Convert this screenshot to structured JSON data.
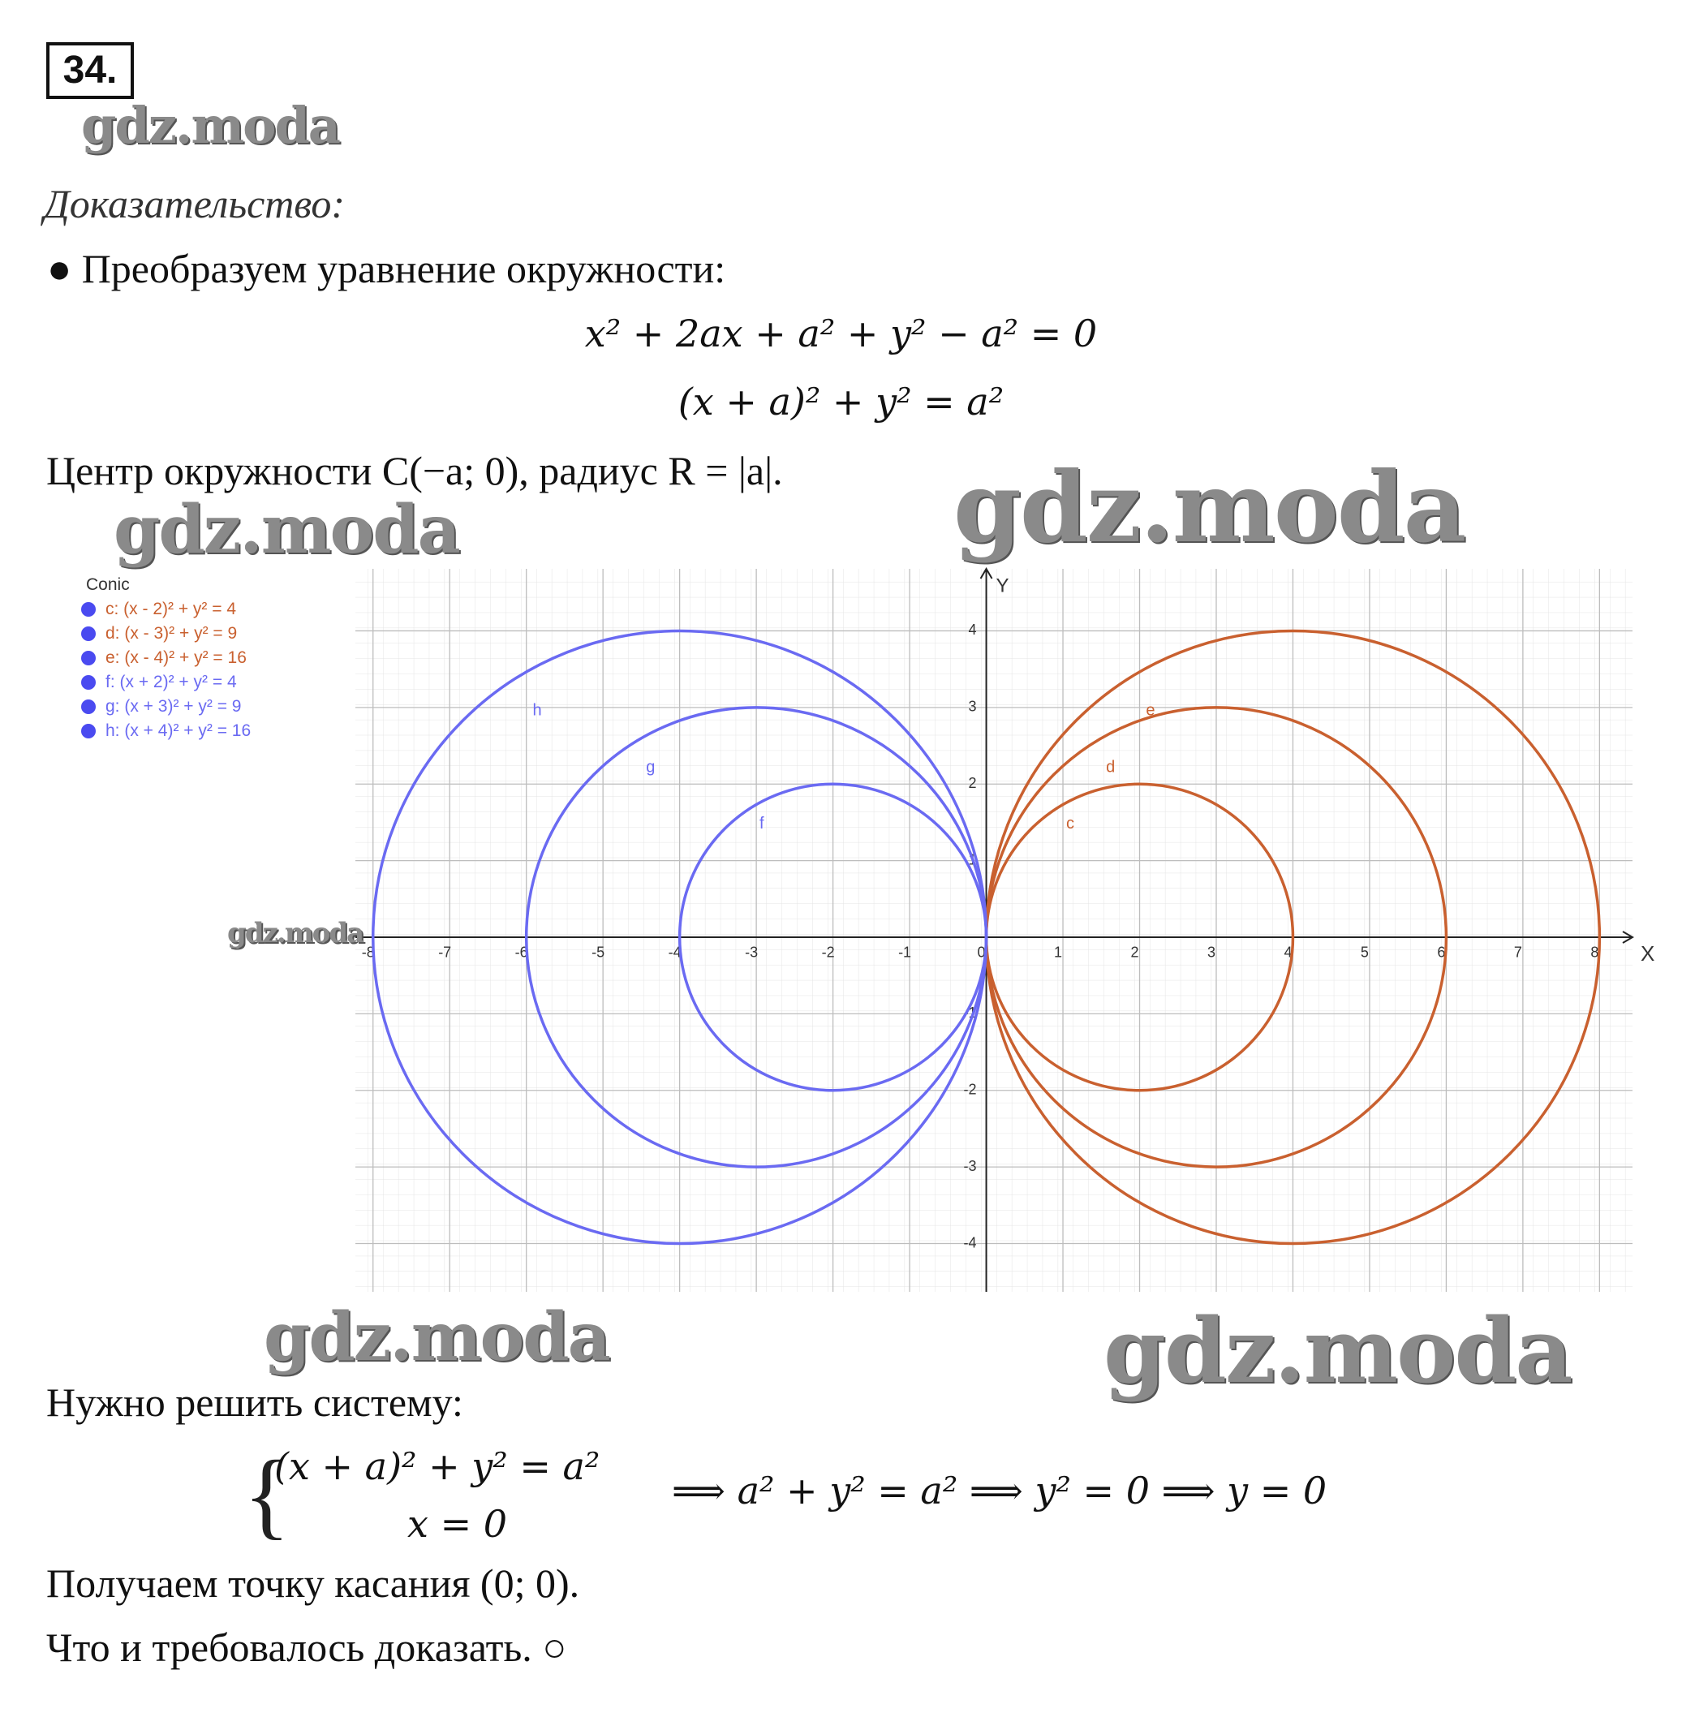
{
  "header": {
    "number": "34."
  },
  "watermarks": [
    "gdz.moda",
    "gdz.moda",
    "gdz.moda",
    "gdz.moda",
    "gdz.moda",
    "gdz.moda"
  ],
  "intro": {
    "heading": "Доказательство:",
    "bullet": "● Преобразуем уравнение окружности:",
    "equations": [
      "x² + 2ax + a² + y² − a² = 0",
      "(x + a)² + y² = a²"
    ],
    "center_text": "Центр окружности C(−a; 0), радиус R = |a|."
  },
  "graph": {
    "legend_title": "Conic",
    "x_label": "X",
    "y_label": "Y",
    "xlim": [
      -8.23,
      8.43
    ],
    "ylim": [
      -4.63,
      4.81
    ],
    "xticks": [
      -8,
      -7,
      -6,
      -5,
      -4,
      -3,
      -2,
      -1,
      0,
      1,
      2,
      3,
      4,
      5,
      6,
      7,
      8
    ],
    "yticks": [
      -4,
      -3,
      -2,
      -1,
      1,
      2,
      3,
      4
    ],
    "conics": [
      {
        "label": "c",
        "equation": "c: (x - 2)² + y² = 4",
        "color": "#c9602f",
        "center": [
          2,
          0
        ],
        "radius": 2
      },
      {
        "label": "d",
        "equation": "d: (x - 3)² + y² = 9",
        "color": "#c9602f",
        "center": [
          3,
          0
        ],
        "radius": 3
      },
      {
        "label": "e",
        "equation": "e: (x - 4)² + y² = 16",
        "color": "#c9602f",
        "center": [
          4,
          0
        ],
        "radius": 4
      },
      {
        "label": "f",
        "equation": "f: (x + 2)² + y² = 4",
        "color": "#6a6af2",
        "center": [
          -2,
          0
        ],
        "radius": 2
      },
      {
        "label": "g",
        "equation": "g: (x + 3)² + y² = 9",
        "color": "#6a6af2",
        "center": [
          -3,
          0
        ],
        "radius": 3
      },
      {
        "label": "h",
        "equation": "h: (x + 4)² + y² = 16",
        "color": "#6a6af2",
        "center": [
          -4,
          0
        ],
        "radius": 4
      }
    ]
  },
  "system": {
    "intro": "Нужно решить систему:",
    "lines": [
      "(x + a)² + y² = a²",
      "x = 0"
    ],
    "result": "⟹ a² + y² = a² ⟹ y² = 0 ⟹ y = 0"
  },
  "conclusion": [
    "Получаем точку касания (0; 0).",
    "Что и требовалось доказать.  ○"
  ]
}
